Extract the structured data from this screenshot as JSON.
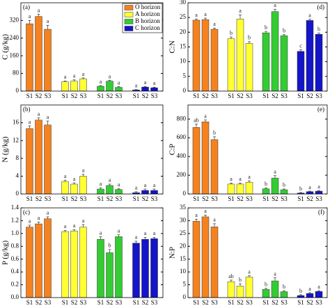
{
  "chart_data": [
    {
      "type": "bar",
      "panel": "(a)",
      "ylabel": "C (g/kg)",
      "categories": [
        "S1",
        "S2",
        "S3"
      ],
      "ylim": [
        0,
        400
      ],
      "yticks": [
        0,
        80,
        160,
        240,
        320
      ],
      "legend": "upper right",
      "series": [
        {
          "name": "O horizon",
          "color": "#f4821f",
          "values": [
            305,
            338,
            280
          ],
          "errors": [
            15,
            10,
            18
          ],
          "letters": [
            "a",
            "a",
            "a"
          ]
        },
        {
          "name": "A horizon",
          "color": "#ffff33",
          "values": [
            42,
            45,
            55
          ],
          "errors": [
            4,
            6,
            5
          ],
          "letters": [
            "a",
            "a",
            "a"
          ]
        },
        {
          "name": "B horizon",
          "color": "#33cc33",
          "values": [
            22,
            45,
            17
          ],
          "errors": [
            3,
            4,
            3
          ],
          "letters": [
            "a",
            "a",
            "a"
          ]
        },
        {
          "name": "C horizon",
          "color": "#1414c8",
          "values": [
            5,
            18,
            15
          ],
          "errors": [
            2,
            3,
            3
          ],
          "letters": [
            "a",
            "a",
            "a"
          ]
        }
      ]
    },
    {
      "type": "bar",
      "panel": "(b)",
      "ylabel": "N (g/kg)",
      "categories": [
        "S1",
        "S2",
        "S3"
      ],
      "ylim": [
        0,
        20
      ],
      "yticks": [
        0,
        4,
        8,
        12,
        16
      ],
      "series": [
        {
          "color": "#f4821f",
          "values": [
            14.7,
            16.6,
            15.5
          ],
          "errors": [
            0.6,
            0.5,
            0.9
          ],
          "letters": [
            "a",
            "a",
            "a"
          ]
        },
        {
          "color": "#ffff33",
          "values": [
            2.8,
            2.2,
            4.0
          ],
          "errors": [
            0.3,
            0.3,
            0.4
          ],
          "letters": [
            "a",
            "a",
            "a"
          ]
        },
        {
          "color": "#33cc33",
          "values": [
            1.1,
            1.9,
            1.0
          ],
          "errors": [
            0.3,
            0.3,
            0.2
          ],
          "letters": [
            "a",
            "a",
            "a"
          ]
        },
        {
          "color": "#1414c8",
          "values": [
            0.3,
            0.8,
            0.8
          ],
          "errors": [
            0.2,
            0.3,
            0.3
          ],
          "letters": [
            "a",
            "a",
            "a"
          ]
        }
      ]
    },
    {
      "type": "bar",
      "panel": "(c)",
      "ylabel": "P (g/kg)",
      "categories": [
        "S1",
        "S2",
        "S3"
      ],
      "ylim": [
        0,
        1.4
      ],
      "yticks": [
        {
          "value": 0,
          "label": "0.0"
        },
        {
          "value": 0.2,
          "label": "0.2"
        },
        {
          "value": 0.4,
          "label": "0.4"
        },
        {
          "value": 0.6,
          "label": "0.6"
        },
        {
          "value": 0.8,
          "label": "0.8"
        },
        {
          "value": 1.0,
          "label": "1.0"
        },
        {
          "value": 1.2,
          "label": "1.2"
        },
        {
          "value": 1.4,
          "label": "1.4"
        }
      ],
      "series": [
        {
          "color": "#f4821f",
          "values": [
            1.1,
            1.15,
            1.23
          ],
          "errors": [
            0.03,
            0.03,
            0.03
          ],
          "letters": [
            "a",
            "a",
            "a"
          ]
        },
        {
          "color": "#ffff33",
          "values": [
            1.03,
            1.04,
            1.1
          ],
          "errors": [
            0.02,
            0.02,
            0.04
          ],
          "letters": [
            "a",
            "a",
            "a"
          ]
        },
        {
          "color": "#33cc33",
          "values": [
            0.91,
            0.7,
            0.95
          ],
          "errors": [
            0.04,
            0.05,
            0.03
          ],
          "letters": [
            "a",
            "b",
            "a"
          ]
        },
        {
          "color": "#1414c8",
          "values": [
            0.85,
            0.91,
            0.92
          ],
          "errors": [
            0.03,
            0.03,
            0.02
          ],
          "letters": [
            "a",
            "a",
            "a"
          ]
        }
      ]
    },
    {
      "type": "bar",
      "panel": "(d)",
      "ylabel": "C:N",
      "categories": [
        "S1",
        "S2",
        "S3"
      ],
      "ylim": [
        0,
        30
      ],
      "yticks": [
        0,
        5,
        10,
        15,
        20,
        25,
        30
      ],
      "series": [
        {
          "color": "#f4821f",
          "values": [
            24.1,
            24.3,
            21
          ],
          "errors": [
            0.4,
            0.5,
            0.4
          ],
          "letters": [
            "a",
            "a",
            "a"
          ]
        },
        {
          "color": "#ffff33",
          "values": [
            17.8,
            24.5,
            16.2
          ],
          "errors": [
            0.6,
            1.4,
            0.6
          ],
          "letters": [
            "b",
            "a",
            "b"
          ]
        },
        {
          "color": "#33cc33",
          "values": [
            19.8,
            27,
            18.8
          ],
          "errors": [
            0.5,
            0.8,
            0.4
          ],
          "letters": [
            "b",
            "a",
            "b"
          ]
        },
        {
          "color": "#1414c8",
          "values": [
            13.5,
            24,
            19.3
          ],
          "errors": [
            0.5,
            0.4,
            0.4
          ],
          "letters": [
            "c",
            "a",
            "b"
          ]
        }
      ]
    },
    {
      "type": "bar",
      "panel": "(e)",
      "ylabel": "C:P",
      "categories": [
        "S1",
        "S2",
        "S3"
      ],
      "ylim": [
        0,
        950
      ],
      "yticks": [
        0,
        200,
        400,
        600,
        800
      ],
      "series": [
        {
          "color": "#f4821f",
          "values": [
            710,
            770,
            580
          ],
          "errors": [
            35,
            20,
            30
          ],
          "letters": [
            "ab",
            "a",
            "b"
          ]
        },
        {
          "color": "#ffff33",
          "values": [
            105,
            105,
            125
          ],
          "errors": [
            12,
            12,
            15
          ],
          "letters": [
            "a",
            "a",
            "a"
          ]
        },
        {
          "color": "#33cc33",
          "values": [
            55,
            170,
            45
          ],
          "errors": [
            10,
            25,
            8
          ],
          "letters": [
            "b",
            "a",
            "b"
          ]
        },
        {
          "color": "#1414c8",
          "values": [
            10,
            25,
            30
          ],
          "errors": [
            5,
            5,
            6
          ],
          "letters": [
            "b",
            "a",
            "a"
          ]
        }
      ]
    },
    {
      "type": "bar",
      "panel": "(f)",
      "ylabel": "N:P",
      "categories": [
        "S1",
        "S2",
        "S3"
      ],
      "ylim": [
        0,
        35
      ],
      "yticks": [
        0,
        5,
        10,
        15,
        20,
        25,
        30,
        35
      ],
      "series": [
        {
          "color": "#f4821f",
          "values": [
            29.8,
            31.5,
            27.6
          ],
          "errors": [
            0.8,
            0.7,
            1.2
          ],
          "letters": [
            "a",
            "a",
            "a"
          ]
        },
        {
          "color": "#ffff33",
          "values": [
            6.2,
            4.5,
            8
          ],
          "errors": [
            0.6,
            0.9,
            0.5
          ],
          "letters": [
            "ab",
            "b",
            "a"
          ]
        },
        {
          "color": "#33cc33",
          "values": [
            3.2,
            6.5,
            2.3
          ],
          "errors": [
            0.4,
            1.2,
            0.4
          ],
          "letters": [
            "b",
            "a",
            "b"
          ]
        },
        {
          "color": "#1414c8",
          "values": [
            0.8,
            1.6,
            2.4
          ],
          "errors": [
            0.3,
            0.3,
            0.3
          ],
          "letters": [
            "b",
            "a",
            "a"
          ]
        }
      ]
    }
  ]
}
